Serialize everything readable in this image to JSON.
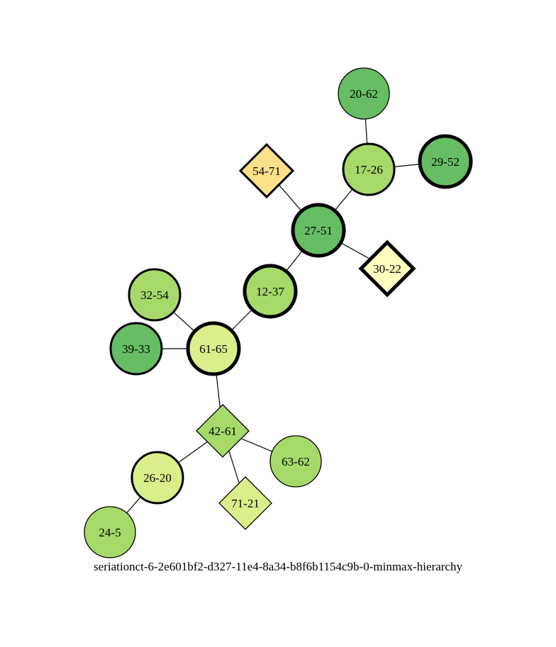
{
  "caption": "seriationct-6-2e601bf2-d327-11e4-8a34-b8f6b1154c9b-0-minmax-hierarchy",
  "nodes": [
    {
      "id": "20-62",
      "shape": "circle",
      "fill": "#66bd63",
      "border": "thin"
    },
    {
      "id": "17-26",
      "shape": "circle",
      "fill": "#a6d96a",
      "border": "medium"
    },
    {
      "id": "29-52",
      "shape": "circle",
      "fill": "#66bd63",
      "border": "thick"
    },
    {
      "id": "54-71",
      "shape": "diamond",
      "fill": "#fee08b",
      "border": "medium"
    },
    {
      "id": "27-51",
      "shape": "circle",
      "fill": "#66bd63",
      "border": "thick"
    },
    {
      "id": "30-22",
      "shape": "diamond",
      "fill": "#ffffbf",
      "border": "thick"
    },
    {
      "id": "32-54",
      "shape": "circle",
      "fill": "#a6d96a",
      "border": "medium"
    },
    {
      "id": "12-37",
      "shape": "circle",
      "fill": "#a6d96a",
      "border": "thick"
    },
    {
      "id": "39-33",
      "shape": "circle",
      "fill": "#66bd63",
      "border": "medium"
    },
    {
      "id": "61-65",
      "shape": "circle",
      "fill": "#d9ef8b",
      "border": "thick"
    },
    {
      "id": "42-61",
      "shape": "diamond",
      "fill": "#a6d96a",
      "border": "thin"
    },
    {
      "id": "63-62",
      "shape": "circle",
      "fill": "#a6d96a",
      "border": "thin"
    },
    {
      "id": "26-20",
      "shape": "circle",
      "fill": "#d9ef8b",
      "border": "medium"
    },
    {
      "id": "71-21",
      "shape": "diamond",
      "fill": "#d9ef8b",
      "border": "thin"
    },
    {
      "id": "24-5",
      "shape": "circle",
      "fill": "#a6d96a",
      "border": "thin"
    }
  ],
  "edges": [
    [
      "20-62",
      "17-26"
    ],
    [
      "17-26",
      "29-52"
    ],
    [
      "17-26",
      "27-51"
    ],
    [
      "54-71",
      "27-51"
    ],
    [
      "27-51",
      "30-22"
    ],
    [
      "27-51",
      "12-37"
    ],
    [
      "12-37",
      "61-65"
    ],
    [
      "32-54",
      "61-65"
    ],
    [
      "39-33",
      "61-65"
    ],
    [
      "61-65",
      "42-61"
    ],
    [
      "42-61",
      "63-62"
    ],
    [
      "42-61",
      "26-20"
    ],
    [
      "42-61",
      "71-21"
    ],
    [
      "26-20",
      "24-5"
    ]
  ]
}
